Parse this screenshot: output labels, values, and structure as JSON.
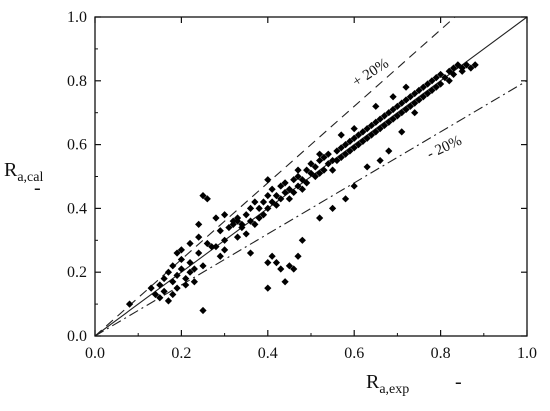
{
  "chart_data": {
    "type": "scatter",
    "title": "",
    "xlabel": {
      "main": "R",
      "sub": "a,exp",
      "unit": "-"
    },
    "ylabel": {
      "main": "R",
      "sub": "a,cal",
      "unit": "-"
    },
    "xlim": [
      0,
      1
    ],
    "ylim": [
      0,
      1
    ],
    "xticks": [
      "0.0",
      "0.2",
      "0.4",
      "0.6",
      "0.8",
      "1.0"
    ],
    "yticks": [
      "0.0",
      "0.2",
      "0.4",
      "0.6",
      "0.8",
      "1.0"
    ],
    "grid": false,
    "legend": "none",
    "reference_lines": [
      {
        "name": "y=x",
        "slope": 1.0,
        "style": "solid"
      },
      {
        "name": "+20%",
        "slope": 1.2,
        "style": "dashed"
      },
      {
        "name": "-20%",
        "slope": 0.8,
        "style": "dash-dot"
      }
    ],
    "annotations": [
      {
        "text": "+ 20%",
        "near": "upper dashed line"
      },
      {
        "text": "- 20%",
        "near": "lower dash-dot line"
      }
    ],
    "series": [
      {
        "marker": "diamond",
        "points": [
          [
            0.08,
            0.1
          ],
          [
            0.13,
            0.15
          ],
          [
            0.14,
            0.13
          ],
          [
            0.15,
            0.16
          ],
          [
            0.15,
            0.12
          ],
          [
            0.16,
            0.18
          ],
          [
            0.16,
            0.14
          ],
          [
            0.17,
            0.2
          ],
          [
            0.17,
            0.11
          ],
          [
            0.18,
            0.17
          ],
          [
            0.18,
            0.22
          ],
          [
            0.18,
            0.13
          ],
          [
            0.19,
            0.26
          ],
          [
            0.19,
            0.19
          ],
          [
            0.19,
            0.15
          ],
          [
            0.2,
            0.27
          ],
          [
            0.2,
            0.21
          ],
          [
            0.2,
            0.24
          ],
          [
            0.21,
            0.18
          ],
          [
            0.21,
            0.16
          ],
          [
            0.22,
            0.23
          ],
          [
            0.22,
            0.29
          ],
          [
            0.22,
            0.2
          ],
          [
            0.23,
            0.21
          ],
          [
            0.23,
            0.17
          ],
          [
            0.24,
            0.26
          ],
          [
            0.24,
            0.31
          ],
          [
            0.24,
            0.35
          ],
          [
            0.25,
            0.44
          ],
          [
            0.26,
            0.43
          ],
          [
            0.25,
            0.22
          ],
          [
            0.26,
            0.29
          ],
          [
            0.25,
            0.08
          ],
          [
            0.27,
            0.28
          ],
          [
            0.28,
            0.28
          ],
          [
            0.28,
            0.37
          ],
          [
            0.29,
            0.33
          ],
          [
            0.29,
            0.25
          ],
          [
            0.3,
            0.3
          ],
          [
            0.3,
            0.27
          ],
          [
            0.31,
            0.34
          ],
          [
            0.32,
            0.36
          ],
          [
            0.32,
            0.35
          ],
          [
            0.33,
            0.31
          ],
          [
            0.33,
            0.37
          ],
          [
            0.34,
            0.35
          ],
          [
            0.34,
            0.34
          ],
          [
            0.35,
            0.32
          ],
          [
            0.35,
            0.38
          ],
          [
            0.36,
            0.4
          ],
          [
            0.36,
            0.36
          ],
          [
            0.37,
            0.35
          ],
          [
            0.37,
            0.42
          ],
          [
            0.38,
            0.4
          ],
          [
            0.38,
            0.37
          ],
          [
            0.39,
            0.42
          ],
          [
            0.39,
            0.38
          ],
          [
            0.4,
            0.44
          ],
          [
            0.4,
            0.4
          ],
          [
            0.41,
            0.46
          ],
          [
            0.41,
            0.42
          ],
          [
            0.42,
            0.44
          ],
          [
            0.42,
            0.41
          ],
          [
            0.43,
            0.47
          ],
          [
            0.43,
            0.43
          ],
          [
            0.44,
            0.45
          ],
          [
            0.44,
            0.48
          ],
          [
            0.45,
            0.46
          ],
          [
            0.45,
            0.43
          ],
          [
            0.46,
            0.49
          ],
          [
            0.46,
            0.45
          ],
          [
            0.47,
            0.47
          ],
          [
            0.47,
            0.5
          ],
          [
            0.48,
            0.46
          ],
          [
            0.48,
            0.49
          ],
          [
            0.49,
            0.52
          ],
          [
            0.49,
            0.48
          ],
          [
            0.5,
            0.51
          ],
          [
            0.5,
            0.54
          ],
          [
            0.51,
            0.5
          ],
          [
            0.51,
            0.53
          ],
          [
            0.52,
            0.55
          ],
          [
            0.52,
            0.51
          ],
          [
            0.53,
            0.52
          ],
          [
            0.53,
            0.56
          ],
          [
            0.54,
            0.54
          ],
          [
            0.54,
            0.57
          ],
          [
            0.55,
            0.55
          ],
          [
            0.55,
            0.52
          ],
          [
            0.56,
            0.58
          ],
          [
            0.56,
            0.55
          ],
          [
            0.57,
            0.59
          ],
          [
            0.57,
            0.56
          ],
          [
            0.58,
            0.6
          ],
          [
            0.58,
            0.57
          ],
          [
            0.59,
            0.61
          ],
          [
            0.59,
            0.58
          ],
          [
            0.6,
            0.62
          ],
          [
            0.6,
            0.59
          ],
          [
            0.61,
            0.63
          ],
          [
            0.61,
            0.6
          ],
          [
            0.62,
            0.64
          ],
          [
            0.62,
            0.61
          ],
          [
            0.63,
            0.62
          ],
          [
            0.63,
            0.65
          ],
          [
            0.64,
            0.66
          ],
          [
            0.64,
            0.63
          ],
          [
            0.65,
            0.67
          ],
          [
            0.65,
            0.64
          ],
          [
            0.66,
            0.68
          ],
          [
            0.66,
            0.65
          ],
          [
            0.67,
            0.69
          ],
          [
            0.67,
            0.66
          ],
          [
            0.68,
            0.7
          ],
          [
            0.68,
            0.67
          ],
          [
            0.69,
            0.71
          ],
          [
            0.69,
            0.68
          ],
          [
            0.7,
            0.72
          ],
          [
            0.7,
            0.69
          ],
          [
            0.71,
            0.73
          ],
          [
            0.71,
            0.7
          ],
          [
            0.72,
            0.74
          ],
          [
            0.72,
            0.71
          ],
          [
            0.73,
            0.75
          ],
          [
            0.73,
            0.72
          ],
          [
            0.74,
            0.76
          ],
          [
            0.74,
            0.73
          ],
          [
            0.75,
            0.77
          ],
          [
            0.75,
            0.74
          ],
          [
            0.76,
            0.78
          ],
          [
            0.76,
            0.75
          ],
          [
            0.77,
            0.79
          ],
          [
            0.77,
            0.76
          ],
          [
            0.78,
            0.8
          ],
          [
            0.78,
            0.77
          ],
          [
            0.79,
            0.81
          ],
          [
            0.79,
            0.78
          ],
          [
            0.8,
            0.82
          ],
          [
            0.8,
            0.79
          ],
          [
            0.81,
            0.81
          ],
          [
            0.82,
            0.83
          ],
          [
            0.82,
            0.8
          ],
          [
            0.83,
            0.84
          ],
          [
            0.83,
            0.82
          ],
          [
            0.84,
            0.85
          ],
          [
            0.85,
            0.83
          ],
          [
            0.85,
            0.84
          ],
          [
            0.86,
            0.85
          ],
          [
            0.87,
            0.84
          ],
          [
            0.88,
            0.85
          ],
          [
            0.36,
            0.26
          ],
          [
            0.4,
            0.23
          ],
          [
            0.41,
            0.25
          ],
          [
            0.42,
            0.23
          ],
          [
            0.43,
            0.21
          ],
          [
            0.44,
            0.17
          ],
          [
            0.45,
            0.22
          ],
          [
            0.46,
            0.21
          ],
          [
            0.47,
            0.25
          ],
          [
            0.4,
            0.15
          ],
          [
            0.48,
            0.3
          ],
          [
            0.52,
            0.37
          ],
          [
            0.55,
            0.4
          ],
          [
            0.58,
            0.43
          ],
          [
            0.6,
            0.47
          ],
          [
            0.63,
            0.53
          ],
          [
            0.66,
            0.55
          ],
          [
            0.68,
            0.58
          ],
          [
            0.71,
            0.64
          ],
          [
            0.74,
            0.7
          ],
          [
            0.4,
            0.49
          ],
          [
            0.47,
            0.52
          ],
          [
            0.52,
            0.57
          ],
          [
            0.57,
            0.63
          ],
          [
            0.6,
            0.65
          ],
          [
            0.65,
            0.72
          ],
          [
            0.69,
            0.75
          ],
          [
            0.72,
            0.78
          ],
          [
            0.3,
            0.38
          ],
          [
            0.33,
            0.36
          ]
        ]
      }
    ]
  }
}
